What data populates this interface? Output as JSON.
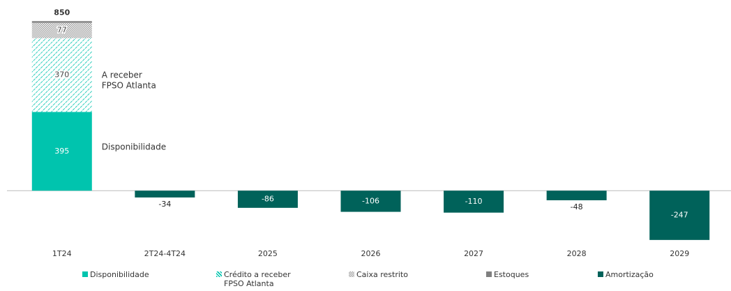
{
  "chart_data": {
    "type": "bar",
    "stacked": true,
    "categories": [
      "1T24",
      "2T24-4T24",
      "2025",
      "2026",
      "2027",
      "2028",
      "2029"
    ],
    "series": [
      {
        "name": "Disponibilidade",
        "color": "#00c4ae",
        "pattern": "solid",
        "values": [
          395,
          null,
          null,
          null,
          null,
          null,
          null
        ]
      },
      {
        "name": "Crédito a receber FPSO Atlanta",
        "color": "#00c4ae",
        "pattern": "hatch",
        "values": [
          370,
          null,
          null,
          null,
          null,
          null,
          null
        ]
      },
      {
        "name": "Caixa restrito",
        "color": "#9a9a9a",
        "pattern": "dots",
        "values": [
          77,
          null,
          null,
          null,
          null,
          null,
          null
        ]
      },
      {
        "name": "Estoques",
        "color": "#7f7f7f",
        "pattern": "solid",
        "labels": false,
        "values": [
          8,
          null,
          null,
          null,
          null,
          null,
          null
        ]
      },
      {
        "name": "Amortização",
        "color": "#00625a",
        "pattern": "solid",
        "values": [
          null,
          -34,
          -86,
          -106,
          -110,
          -48,
          -247
        ]
      }
    ],
    "totals": [
      850,
      null,
      null,
      null,
      null,
      null,
      null
    ],
    "annotations": [
      {
        "category": 0,
        "value": 580,
        "lines": [
          "A receber",
          "FPSO Atlanta"
        ]
      },
      {
        "category": 0,
        "value": 220,
        "lines": [
          "Disponibilidade"
        ]
      }
    ],
    "ylim": [
      -300,
      900
    ]
  }
}
